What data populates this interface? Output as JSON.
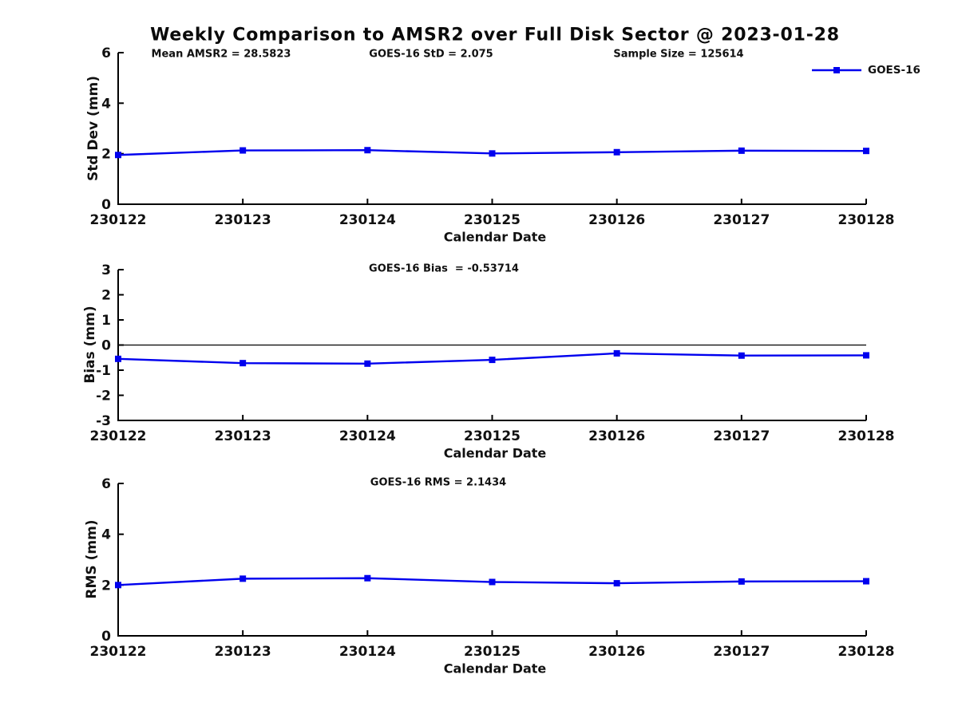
{
  "title": "Weekly Comparison to AMSR2 over Full Disk Sector @ 2023-01-28",
  "colors": {
    "series": "#0000EE",
    "axis": "#000000",
    "text": "#111111",
    "zero_line": "#000000"
  },
  "legend": {
    "label": "GOES-16"
  },
  "chart_data": [
    {
      "type": "line",
      "title": "",
      "annotations": [
        "Mean AMSR2 = 28.5823",
        "GOES-16 StD = 2.075",
        "Sample Size = 125614"
      ],
      "xlabel": "Calendar Date",
      "ylabel": "Std Dev (mm)",
      "categories": [
        "230122",
        "230123",
        "230124",
        "230125",
        "230126",
        "230127",
        "230128"
      ],
      "series": [
        {
          "name": "GOES-16",
          "values": [
            1.95,
            2.13,
            2.14,
            2.01,
            2.06,
            2.12,
            2.11
          ]
        }
      ],
      "ylim": [
        0,
        6
      ],
      "yticks": [
        0,
        2,
        4,
        6
      ],
      "grid": false,
      "legend_position": "top-right",
      "stat_mean_amsr2": 28.5823,
      "stat_goes16_std": 2.075,
      "stat_sample_size": 125614
    },
    {
      "type": "line",
      "title": "GOES-16 Bias  = -0.53714",
      "xlabel": "Calendar Date",
      "ylabel": "Bias (mm)",
      "categories": [
        "230122",
        "230123",
        "230124",
        "230125",
        "230126",
        "230127",
        "230128"
      ],
      "series": [
        {
          "name": "GOES-16",
          "values": [
            -0.55,
            -0.72,
            -0.74,
            -0.59,
            -0.33,
            -0.42,
            -0.41
          ]
        }
      ],
      "ylim": [
        -3,
        3
      ],
      "yticks": [
        -3,
        -2,
        -1,
        0,
        1,
        2,
        3
      ],
      "zero_line": true,
      "grid": false,
      "stat_goes16_bias": -0.53714
    },
    {
      "type": "line",
      "title": "GOES-16 RMS = 2.1434",
      "xlabel": "Calendar Date",
      "ylabel": "RMS (mm)",
      "categories": [
        "230122",
        "230123",
        "230124",
        "230125",
        "230126",
        "230127",
        "230128"
      ],
      "series": [
        {
          "name": "GOES-16",
          "values": [
            2.0,
            2.25,
            2.27,
            2.12,
            2.07,
            2.14,
            2.15
          ]
        }
      ],
      "ylim": [
        0,
        6
      ],
      "yticks": [
        0,
        2,
        4,
        6
      ],
      "grid": false,
      "stat_goes16_rms": 2.1434
    }
  ]
}
